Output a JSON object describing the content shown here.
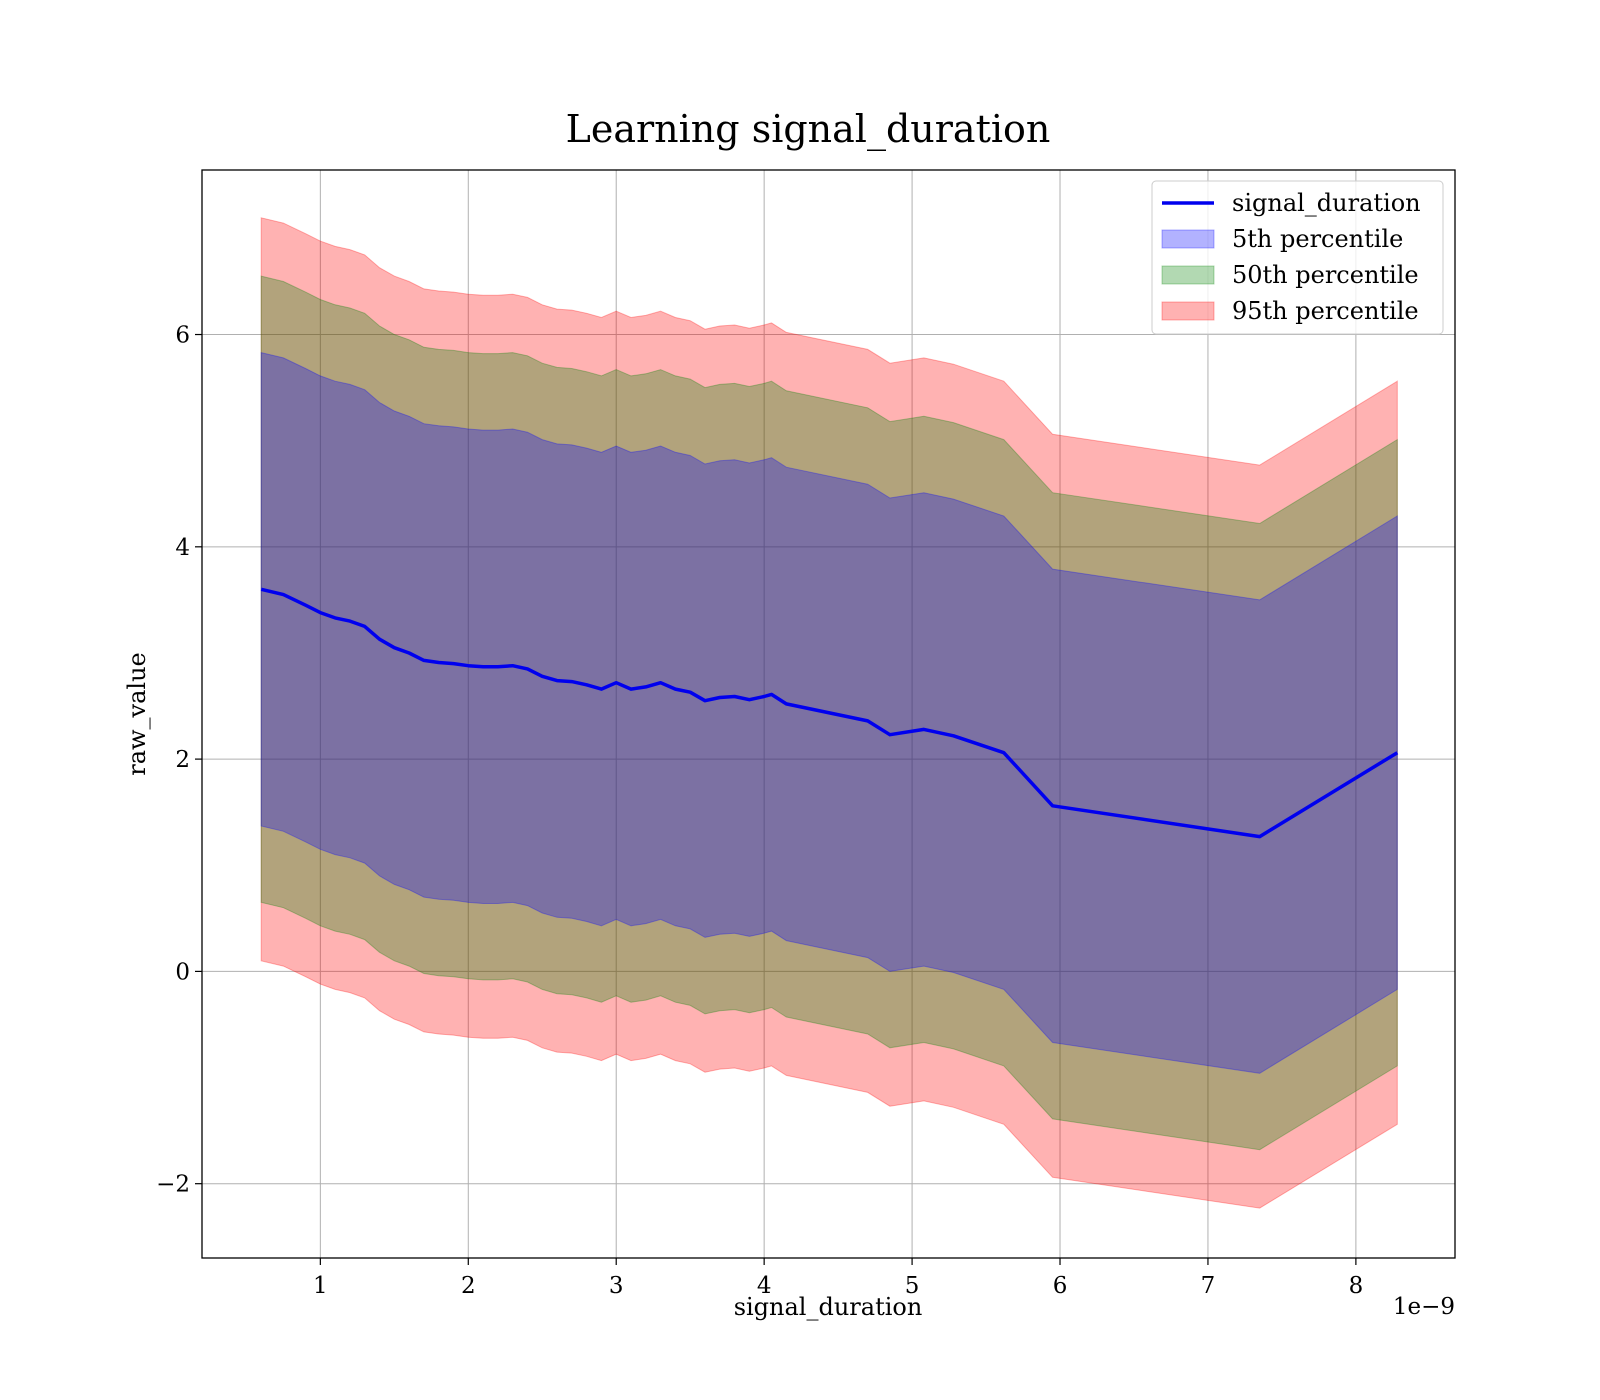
{
  "chart_data": {
    "type": "area",
    "title": "Learning signal_duration",
    "xlabel": "signal_duration",
    "ylabel": "raw_value",
    "x_offset_text": "1e−9",
    "xlim": [
      0.2,
      8.67
    ],
    "ylim": [
      -2.7,
      7.55
    ],
    "x_ticks": [
      1,
      2,
      3,
      4,
      5,
      6,
      7,
      8
    ],
    "x_tick_labels": [
      "1",
      "2",
      "3",
      "4",
      "5",
      "6",
      "7",
      "8"
    ],
    "y_ticks": [
      -2,
      0,
      2,
      4,
      6
    ],
    "y_tick_labels": [
      "−2",
      "0",
      "2",
      "4",
      "6"
    ],
    "grid": true,
    "legend_position": "top-right",
    "colors": {
      "line": "#0000ee",
      "band_5th": "#0000ff",
      "band_50th": "#008000",
      "band_95th": "#ff0000"
    },
    "x": [
      0.6,
      0.75,
      0.9,
      1.0,
      1.1,
      1.2,
      1.3,
      1.4,
      1.5,
      1.6,
      1.7,
      1.8,
      1.9,
      2.0,
      2.1,
      2.2,
      2.3,
      2.4,
      2.5,
      2.6,
      2.7,
      2.8,
      2.9,
      3.0,
      3.1,
      3.2,
      3.3,
      3.4,
      3.5,
      3.6,
      3.7,
      3.8,
      3.9,
      4.0,
      4.05,
      4.15,
      4.7,
      4.85,
      5.08,
      5.28,
      5.62,
      5.95,
      7.35,
      8.28
    ],
    "series": [
      {
        "name": "signal_duration",
        "values": [
          3.6,
          3.55,
          3.45,
          3.38,
          3.33,
          3.3,
          3.25,
          3.13,
          3.05,
          3.0,
          2.93,
          2.91,
          2.9,
          2.88,
          2.87,
          2.87,
          2.88,
          2.85,
          2.78,
          2.74,
          2.73,
          2.7,
          2.66,
          2.72,
          2.66,
          2.68,
          2.72,
          2.66,
          2.63,
          2.55,
          2.58,
          2.59,
          2.56,
          2.59,
          2.61,
          2.52,
          2.36,
          2.23,
          2.28,
          2.22,
          2.06,
          1.56,
          1.27,
          2.06
        ]
      },
      {
        "name": "5th percentile",
        "values": [
          3.6,
          3.55,
          3.45,
          3.38,
          3.33,
          3.3,
          3.25,
          3.13,
          3.05,
          3.0,
          2.93,
          2.91,
          2.9,
          2.88,
          2.87,
          2.87,
          2.88,
          2.85,
          2.78,
          2.74,
          2.73,
          2.7,
          2.66,
          2.72,
          2.66,
          2.68,
          2.72,
          2.66,
          2.63,
          2.55,
          2.58,
          2.59,
          2.56,
          2.59,
          2.61,
          2.52,
          2.36,
          2.23,
          2.28,
          2.22,
          2.06,
          1.56,
          1.27,
          2.06
        ],
        "half_width": 2.23
      },
      {
        "name": "50th percentile",
        "values": [
          3.6,
          3.55,
          3.45,
          3.38,
          3.33,
          3.3,
          3.25,
          3.13,
          3.05,
          3.0,
          2.93,
          2.91,
          2.9,
          2.88,
          2.87,
          2.87,
          2.88,
          2.85,
          2.78,
          2.74,
          2.73,
          2.7,
          2.66,
          2.72,
          2.66,
          2.68,
          2.72,
          2.66,
          2.63,
          2.55,
          2.58,
          2.59,
          2.56,
          2.59,
          2.61,
          2.52,
          2.36,
          2.23,
          2.28,
          2.22,
          2.06,
          1.56,
          1.27,
          2.06
        ],
        "half_width": 2.95
      },
      {
        "name": "95th percentile",
        "values": [
          3.6,
          3.55,
          3.45,
          3.38,
          3.33,
          3.3,
          3.25,
          3.13,
          3.05,
          3.0,
          2.93,
          2.91,
          2.9,
          2.88,
          2.87,
          2.87,
          2.88,
          2.85,
          2.78,
          2.74,
          2.73,
          2.7,
          2.66,
          2.72,
          2.66,
          2.68,
          2.72,
          2.66,
          2.63,
          2.55,
          2.58,
          2.59,
          2.56,
          2.59,
          2.61,
          2.52,
          2.36,
          2.23,
          2.28,
          2.22,
          2.06,
          1.56,
          1.27,
          2.06
        ],
        "half_width": 3.5
      }
    ],
    "legend": [
      "signal_duration",
      "5th percentile",
      "50th percentile",
      "95th percentile"
    ]
  }
}
